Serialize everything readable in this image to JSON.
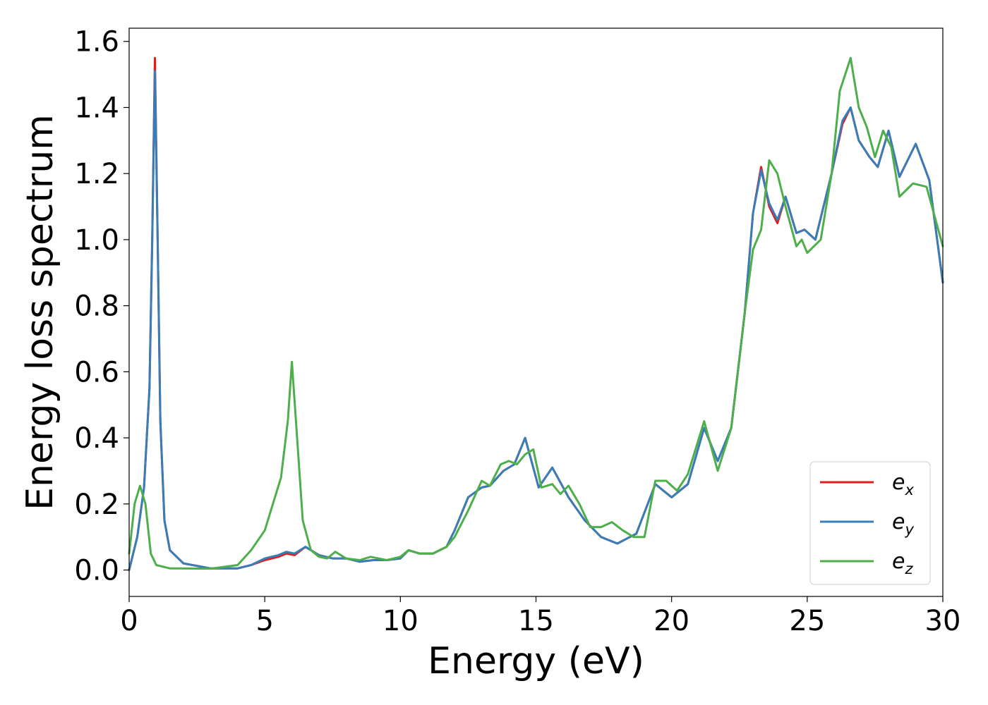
{
  "chart_data": {
    "type": "line",
    "title": "",
    "xlabel": "Energy (eV)",
    "ylabel": "Energy loss spectrum",
    "xlim": [
      0,
      30
    ],
    "ylim": [
      -0.08,
      1.64
    ],
    "xticks": [
      "0",
      "5",
      "10",
      "15",
      "20",
      "25",
      "30"
    ],
    "yticks": [
      "0.0",
      "0.2",
      "0.4",
      "0.6",
      "0.8",
      "1.0",
      "1.2",
      "1.4",
      "1.6"
    ],
    "grid": false,
    "legend_position": "lower-right",
    "series": [
      {
        "name": "e",
        "subscript": "x",
        "color": "#e41a1c",
        "points": [
          [
            0,
            0
          ],
          [
            0.3,
            0.1
          ],
          [
            0.55,
            0.25
          ],
          [
            0.75,
            0.55
          ],
          [
            0.85,
            1.0
          ],
          [
            0.95,
            1.55
          ],
          [
            1.05,
            1.0
          ],
          [
            1.15,
            0.45
          ],
          [
            1.3,
            0.15
          ],
          [
            1.5,
            0.06
          ],
          [
            2,
            0.02
          ],
          [
            3,
            0.005
          ],
          [
            4,
            0.005
          ],
          [
            4.5,
            0.015
          ],
          [
            5,
            0.03
          ],
          [
            5.5,
            0.04
          ],
          [
            5.8,
            0.05
          ],
          [
            6.1,
            0.045
          ],
          [
            6.5,
            0.07
          ],
          [
            7,
            0.045
          ],
          [
            7.5,
            0.035
          ],
          [
            8,
            0.035
          ],
          [
            8.5,
            0.025
          ],
          [
            9,
            0.03
          ],
          [
            9.5,
            0.03
          ],
          [
            10,
            0.035
          ],
          [
            10.3,
            0.06
          ],
          [
            10.7,
            0.05
          ],
          [
            11.2,
            0.05
          ],
          [
            11.7,
            0.07
          ],
          [
            12,
            0.12
          ],
          [
            12.5,
            0.22
          ],
          [
            13,
            0.25
          ],
          [
            13.3,
            0.255
          ],
          [
            13.8,
            0.3
          ],
          [
            14.2,
            0.32
          ],
          [
            14.6,
            0.4
          ],
          [
            15.1,
            0.25
          ],
          [
            15.6,
            0.31
          ],
          [
            16.2,
            0.22
          ],
          [
            16.8,
            0.15
          ],
          [
            17.4,
            0.1
          ],
          [
            18,
            0.08
          ],
          [
            18.7,
            0.11
          ],
          [
            19.4,
            0.26
          ],
          [
            20,
            0.22
          ],
          [
            20.6,
            0.26
          ],
          [
            21.2,
            0.43
          ],
          [
            21.7,
            0.33
          ],
          [
            22.2,
            0.43
          ],
          [
            22.7,
            0.78
          ],
          [
            23,
            1.08
          ],
          [
            23.3,
            1.22
          ],
          [
            23.6,
            1.1
          ],
          [
            23.9,
            1.05
          ],
          [
            24.2,
            1.13
          ],
          [
            24.6,
            1.02
          ],
          [
            24.9,
            1.03
          ],
          [
            25.3,
            1.0
          ],
          [
            25.9,
            1.2
          ],
          [
            26.3,
            1.35
          ],
          [
            26.6,
            1.4
          ],
          [
            26.9,
            1.3
          ],
          [
            27.3,
            1.25
          ],
          [
            27.6,
            1.22
          ],
          [
            28,
            1.33
          ],
          [
            28.4,
            1.19
          ],
          [
            29,
            1.29
          ],
          [
            29.5,
            1.18
          ],
          [
            30,
            0.87
          ]
        ]
      },
      {
        "name": "e",
        "subscript": "y",
        "color": "#377eb8",
        "points": [
          [
            0,
            0
          ],
          [
            0.3,
            0.1
          ],
          [
            0.55,
            0.25
          ],
          [
            0.75,
            0.55
          ],
          [
            0.85,
            1.0
          ],
          [
            0.95,
            1.51
          ],
          [
            1.05,
            1.0
          ],
          [
            1.15,
            0.45
          ],
          [
            1.3,
            0.15
          ],
          [
            1.5,
            0.06
          ],
          [
            2,
            0.02
          ],
          [
            3,
            0.005
          ],
          [
            4,
            0.005
          ],
          [
            4.5,
            0.015
          ],
          [
            5,
            0.035
          ],
          [
            5.5,
            0.045
          ],
          [
            5.8,
            0.055
          ],
          [
            6.1,
            0.05
          ],
          [
            6.5,
            0.07
          ],
          [
            7,
            0.045
          ],
          [
            7.5,
            0.035
          ],
          [
            8,
            0.035
          ],
          [
            8.5,
            0.025
          ],
          [
            9,
            0.03
          ],
          [
            9.5,
            0.03
          ],
          [
            10,
            0.035
          ],
          [
            10.3,
            0.06
          ],
          [
            10.7,
            0.05
          ],
          [
            11.2,
            0.05
          ],
          [
            11.7,
            0.07
          ],
          [
            12,
            0.12
          ],
          [
            12.5,
            0.22
          ],
          [
            13,
            0.25
          ],
          [
            13.3,
            0.255
          ],
          [
            13.8,
            0.3
          ],
          [
            14.2,
            0.32
          ],
          [
            14.6,
            0.4
          ],
          [
            15.1,
            0.25
          ],
          [
            15.6,
            0.31
          ],
          [
            16.2,
            0.22
          ],
          [
            16.8,
            0.15
          ],
          [
            17.4,
            0.1
          ],
          [
            18,
            0.08
          ],
          [
            18.7,
            0.11
          ],
          [
            19.4,
            0.26
          ],
          [
            20,
            0.22
          ],
          [
            20.6,
            0.26
          ],
          [
            21.2,
            0.43
          ],
          [
            21.7,
            0.33
          ],
          [
            22.2,
            0.43
          ],
          [
            22.7,
            0.78
          ],
          [
            23,
            1.08
          ],
          [
            23.3,
            1.21
          ],
          [
            23.6,
            1.11
          ],
          [
            23.9,
            1.06
          ],
          [
            24.2,
            1.13
          ],
          [
            24.6,
            1.02
          ],
          [
            24.9,
            1.03
          ],
          [
            25.3,
            1.0
          ],
          [
            25.9,
            1.2
          ],
          [
            26.3,
            1.36
          ],
          [
            26.6,
            1.4
          ],
          [
            26.9,
            1.3
          ],
          [
            27.3,
            1.25
          ],
          [
            27.6,
            1.22
          ],
          [
            28,
            1.33
          ],
          [
            28.4,
            1.19
          ],
          [
            29,
            1.29
          ],
          [
            29.5,
            1.18
          ],
          [
            30,
            0.87
          ]
        ]
      },
      {
        "name": "e",
        "subscript": "z",
        "color": "#4daf4a",
        "points": [
          [
            0,
            0.05
          ],
          [
            0.2,
            0.2
          ],
          [
            0.4,
            0.255
          ],
          [
            0.6,
            0.2
          ],
          [
            0.8,
            0.05
          ],
          [
            1.0,
            0.015
          ],
          [
            1.5,
            0.005
          ],
          [
            3,
            0.004
          ],
          [
            4,
            0.015
          ],
          [
            4.5,
            0.06
          ],
          [
            5,
            0.12
          ],
          [
            5.3,
            0.2
          ],
          [
            5.6,
            0.28
          ],
          [
            5.85,
            0.45
          ],
          [
            6.0,
            0.63
          ],
          [
            6.15,
            0.45
          ],
          [
            6.4,
            0.15
          ],
          [
            6.7,
            0.06
          ],
          [
            7,
            0.04
          ],
          [
            7.3,
            0.035
          ],
          [
            7.6,
            0.055
          ],
          [
            8,
            0.035
          ],
          [
            8.5,
            0.03
          ],
          [
            8.9,
            0.04
          ],
          [
            9.5,
            0.03
          ],
          [
            10,
            0.04
          ],
          [
            10.3,
            0.06
          ],
          [
            10.7,
            0.05
          ],
          [
            11.2,
            0.05
          ],
          [
            11.7,
            0.07
          ],
          [
            12,
            0.1
          ],
          [
            12.5,
            0.18
          ],
          [
            13,
            0.27
          ],
          [
            13.3,
            0.255
          ],
          [
            13.7,
            0.32
          ],
          [
            14,
            0.33
          ],
          [
            14.3,
            0.32
          ],
          [
            14.6,
            0.35
          ],
          [
            14.9,
            0.365
          ],
          [
            15.2,
            0.25
          ],
          [
            15.6,
            0.26
          ],
          [
            15.9,
            0.23
          ],
          [
            16.2,
            0.255
          ],
          [
            16.6,
            0.2
          ],
          [
            17,
            0.13
          ],
          [
            17.4,
            0.13
          ],
          [
            17.8,
            0.145
          ],
          [
            18.2,
            0.12
          ],
          [
            18.6,
            0.1
          ],
          [
            19,
            0.1
          ],
          [
            19.4,
            0.27
          ],
          [
            19.8,
            0.27
          ],
          [
            20.2,
            0.24
          ],
          [
            20.6,
            0.29
          ],
          [
            21.2,
            0.45
          ],
          [
            21.7,
            0.3
          ],
          [
            22.2,
            0.43
          ],
          [
            22.7,
            0.78
          ],
          [
            23,
            0.97
          ],
          [
            23.3,
            1.03
          ],
          [
            23.6,
            1.24
          ],
          [
            23.9,
            1.2
          ],
          [
            24.2,
            1.1
          ],
          [
            24.6,
            0.98
          ],
          [
            24.8,
            1.0
          ],
          [
            25.0,
            0.96
          ],
          [
            25.5,
            1.0
          ],
          [
            25.9,
            1.2
          ],
          [
            26.2,
            1.45
          ],
          [
            26.6,
            1.55
          ],
          [
            26.9,
            1.4
          ],
          [
            27.2,
            1.34
          ],
          [
            27.5,
            1.25
          ],
          [
            27.8,
            1.33
          ],
          [
            28.1,
            1.28
          ],
          [
            28.4,
            1.13
          ],
          [
            28.9,
            1.17
          ],
          [
            29.4,
            1.16
          ],
          [
            30,
            0.98
          ]
        ]
      }
    ]
  }
}
